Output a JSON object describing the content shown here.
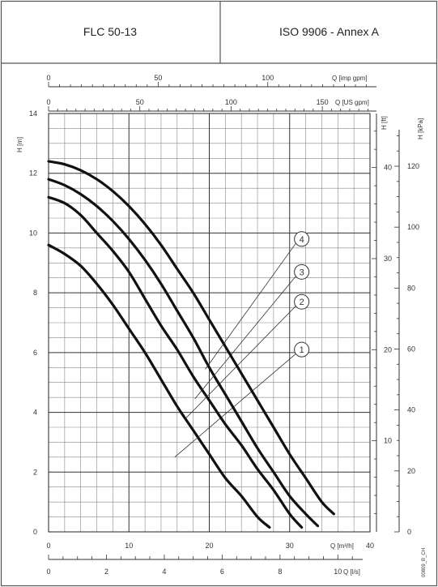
{
  "header": {
    "model": "FLC 50-13",
    "standard": "ISO 9906 - Annex A"
  },
  "side_code": "00809_B_CH",
  "chart_data": {
    "type": "line",
    "x_main": {
      "label": "Q [m³/h]",
      "range": [
        0,
        40
      ],
      "ticks": [
        0,
        10,
        20,
        30,
        40
      ]
    },
    "y_main": {
      "label": "H [m]",
      "range": [
        0,
        14
      ],
      "ticks": [
        0,
        2,
        4,
        6,
        8,
        10,
        12,
        14
      ]
    },
    "x_top_imp": {
      "label": "Q [imp gpm]",
      "ticks": [
        0,
        50,
        100
      ]
    },
    "x_top_us": {
      "label": "Q [US gpm]",
      "ticks": [
        0,
        50,
        100,
        150
      ]
    },
    "x_bottom_ls": {
      "label": "Q [l/s]",
      "ticks": [
        0,
        2,
        4,
        6,
        8,
        10
      ]
    },
    "y_right_ft": {
      "label": "H [ft]",
      "ticks": [
        10,
        20,
        30,
        40
      ]
    },
    "y_right_kpa": {
      "label": "H [kPa]",
      "ticks": [
        0,
        20,
        40,
        60,
        80,
        100,
        120
      ]
    },
    "grid": true,
    "series": [
      {
        "name": "1",
        "x": [
          0,
          2,
          4,
          6,
          8,
          10,
          12,
          14,
          16,
          18,
          20,
          22,
          24,
          26,
          27.5
        ],
        "values": [
          9.6,
          9.3,
          8.9,
          8.3,
          7.6,
          6.8,
          6.0,
          5.1,
          4.2,
          3.4,
          2.6,
          1.8,
          1.2,
          0.5,
          0.15
        ]
      },
      {
        "name": "2",
        "x": [
          0,
          2,
          4,
          6,
          8,
          10,
          12,
          14,
          16,
          18,
          20,
          22,
          24,
          26,
          28,
          30,
          31.5
        ],
        "values": [
          11.2,
          11.0,
          10.6,
          10.0,
          9.4,
          8.7,
          7.8,
          6.9,
          6.1,
          5.2,
          4.4,
          3.6,
          2.9,
          2.1,
          1.4,
          0.6,
          0.15
        ]
      },
      {
        "name": "3",
        "x": [
          0,
          2,
          4,
          6,
          8,
          10,
          12,
          14,
          16,
          18,
          20,
          22,
          24,
          26,
          28,
          30,
          32,
          33.5
        ],
        "values": [
          11.8,
          11.6,
          11.3,
          10.9,
          10.4,
          9.8,
          9.1,
          8.3,
          7.4,
          6.5,
          5.5,
          4.6,
          3.7,
          2.8,
          2.0,
          1.2,
          0.6,
          0.2
        ]
      },
      {
        "name": "4",
        "x": [
          0,
          2,
          4,
          6,
          8,
          10,
          12,
          14,
          16,
          18,
          20,
          22,
          24,
          26,
          28,
          30,
          32,
          34,
          35.5
        ],
        "values": [
          12.4,
          12.3,
          12.1,
          11.8,
          11.4,
          10.9,
          10.3,
          9.6,
          8.8,
          8.0,
          7.1,
          6.2,
          5.3,
          4.4,
          3.5,
          2.6,
          1.8,
          1.0,
          0.6
        ]
      }
    ]
  }
}
